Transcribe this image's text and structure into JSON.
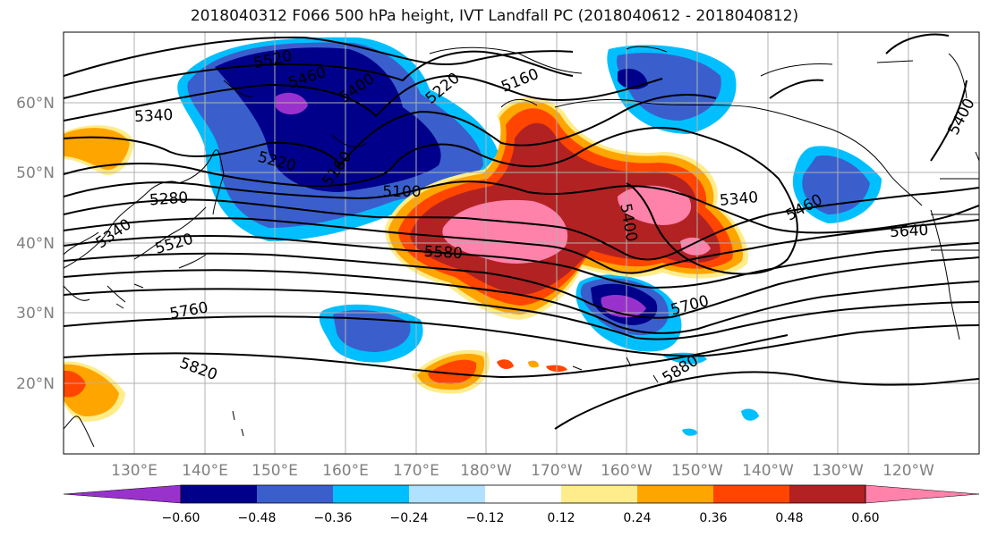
{
  "title": "2018040312 F066 500 hPa height, IVT Landfall PC (2018040612 - 2018040812)",
  "lat_labels": [
    "60°N",
    "50°N",
    "40°N",
    "30°N",
    "20°N"
  ],
  "lon_labels": [
    "130°E",
    "140°E",
    "150°E",
    "160°E",
    "170°E",
    "180°W",
    "170°W",
    "160°W",
    "150°W",
    "140°W",
    "130°W",
    "120°W"
  ],
  "contour_labels": [
    "5520",
    "5460",
    "5400",
    "5220",
    "5160",
    "5340",
    "5220",
    "5160",
    "5100",
    "5280",
    "5340",
    "5520",
    "5580",
    "5400",
    "5340",
    "5460",
    "5640",
    "5760",
    "5700",
    "5820",
    "5880",
    "5400"
  ],
  "colorbar": {
    "colors": [
      "#9932cc",
      "#00008b",
      "#3a5fcd",
      "#00bfff",
      "#b0e2ff",
      "#ffffff",
      "#ffec8b",
      "#ffa500",
      "#ff4500",
      "#b22222",
      "#ff82ab"
    ],
    "tick_labels": [
      "−0.60",
      "−0.48",
      "−0.36",
      "−0.24",
      "−0.12",
      "0.12",
      "0.24",
      "0.36",
      "0.48",
      "0.60"
    ]
  }
}
